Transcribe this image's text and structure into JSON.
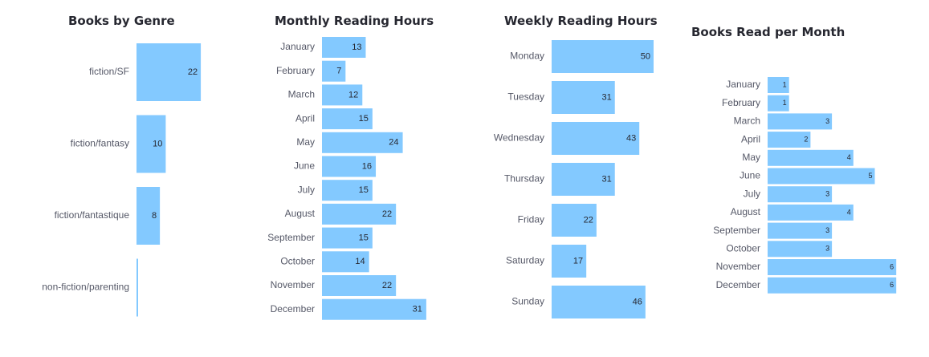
{
  "bar_color": "#83c9ff",
  "chart_data": [
    {
      "type": "bar",
      "orientation": "horizontal",
      "title": "Books by Genre",
      "categories": [
        "fiction/SF",
        "fiction/fantasy",
        "fiction/fantastique",
        "non-fiction/parenting"
      ],
      "values": [
        22,
        10,
        8,
        0.5
      ],
      "value_labels": [
        "22",
        "10",
        "8",
        ""
      ]
    },
    {
      "type": "bar",
      "orientation": "horizontal",
      "title": "Monthly Reading Hours",
      "categories": [
        "January",
        "February",
        "March",
        "April",
        "May",
        "June",
        "July",
        "August",
        "September",
        "October",
        "November",
        "December"
      ],
      "values": [
        13,
        7,
        12,
        15,
        24,
        16,
        15,
        22,
        15,
        14,
        22,
        31
      ],
      "value_labels": [
        "13",
        "7",
        "12",
        "15",
        "24",
        "16",
        "15",
        "22",
        "15",
        "14",
        "22",
        "31"
      ]
    },
    {
      "type": "bar",
      "orientation": "horizontal",
      "title": "Weekly Reading Hours",
      "categories": [
        "Monday",
        "Tuesday",
        "Wednesday",
        "Thursday",
        "Friday",
        "Saturday",
        "Sunday"
      ],
      "values": [
        50,
        31,
        43,
        31,
        22,
        17,
        46
      ],
      "value_labels": [
        "50",
        "31",
        "43",
        "31",
        "22",
        "17",
        "46"
      ]
    },
    {
      "type": "bar",
      "orientation": "horizontal",
      "title": "Books Read per Month",
      "categories": [
        "January",
        "February",
        "March",
        "April",
        "May",
        "June",
        "July",
        "August",
        "September",
        "October",
        "November",
        "December"
      ],
      "values": [
        1,
        1,
        3,
        2,
        4,
        5,
        3,
        4,
        3,
        3,
        6,
        6
      ],
      "value_labels": [
        "1",
        "1",
        "3",
        "2",
        "4",
        "5",
        "3",
        "4",
        "3",
        "3",
        "6",
        "6"
      ]
    }
  ]
}
